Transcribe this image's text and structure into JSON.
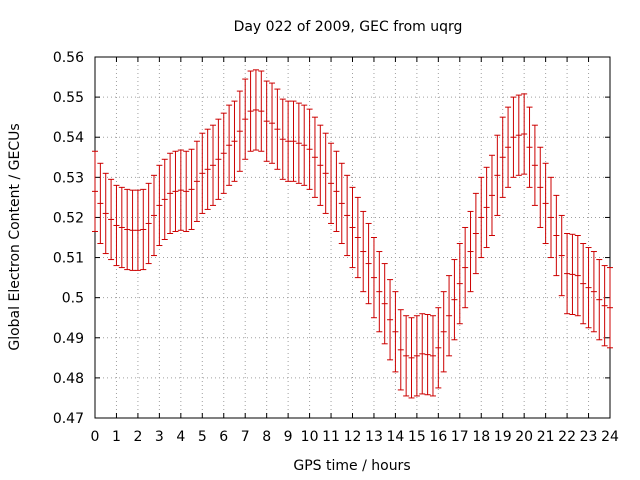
{
  "chart_data": {
    "type": "line",
    "title": "Day 022 of 2009, GEC from uqrg",
    "xlabel": "GPS time / hours",
    "ylabel": "Global Electron Content / GECUs",
    "xlim": [
      0,
      24
    ],
    "ylim": [
      0.47,
      0.56
    ],
    "grid": true,
    "xticks": [
      "0",
      "1",
      "2",
      "3",
      "4",
      "5",
      "6",
      "7",
      "8",
      "9",
      "10",
      "11",
      "12",
      "13",
      "14",
      "15",
      "16",
      "17",
      "18",
      "19",
      "20",
      "21",
      "22",
      "23",
      "24"
    ],
    "yticks": [
      "0.47",
      "0.48",
      "0.49",
      "0.5",
      "0.51",
      "0.52",
      "0.53",
      "0.54",
      "0.55",
      "0.56"
    ],
    "series": [
      {
        "name": "GEC",
        "color": "#cc0000",
        "error": 0.01,
        "x": [
          0,
          0.25,
          0.5,
          0.75,
          1,
          1.25,
          1.5,
          1.75,
          2,
          2.25,
          2.5,
          2.75,
          3,
          3.25,
          3.5,
          3.75,
          4,
          4.25,
          4.5,
          4.75,
          5,
          5.25,
          5.5,
          5.75,
          6,
          6.25,
          6.5,
          6.75,
          7,
          7.25,
          7.5,
          7.75,
          8,
          8.25,
          8.5,
          8.75,
          9,
          9.25,
          9.5,
          9.75,
          10,
          10.25,
          10.5,
          10.75,
          11,
          11.25,
          11.5,
          11.75,
          12,
          12.25,
          12.5,
          12.75,
          13,
          13.25,
          13.5,
          13.75,
          14,
          14.25,
          14.5,
          14.75,
          15,
          15.25,
          15.5,
          15.75,
          16,
          16.25,
          16.5,
          16.75,
          17,
          17.25,
          17.5,
          17.75,
          18,
          18.25,
          18.5,
          18.75,
          19,
          19.25,
          19.5,
          19.75,
          20,
          20.25,
          20.5,
          20.75,
          21,
          21.25,
          21.5,
          21.75,
          22,
          22.25,
          22.5,
          22.75,
          23,
          23.25,
          23.5,
          23.75,
          24
        ],
        "values": [
          0.5265,
          0.5235,
          0.521,
          0.5195,
          0.518,
          0.5175,
          0.517,
          0.5168,
          0.5168,
          0.517,
          0.5185,
          0.5205,
          0.523,
          0.5245,
          0.526,
          0.5265,
          0.5268,
          0.5265,
          0.527,
          0.529,
          0.531,
          0.532,
          0.533,
          0.5345,
          0.536,
          0.538,
          0.539,
          0.5415,
          0.5445,
          0.5465,
          0.5468,
          0.5465,
          0.544,
          0.5435,
          0.542,
          0.5395,
          0.539,
          0.539,
          0.5385,
          0.538,
          0.537,
          0.535,
          0.533,
          0.531,
          0.5285,
          0.5265,
          0.5235,
          0.5205,
          0.5175,
          0.515,
          0.5115,
          0.5085,
          0.505,
          0.5015,
          0.4985,
          0.4945,
          0.4915,
          0.487,
          0.4855,
          0.485,
          0.4855,
          0.486,
          0.4858,
          0.4855,
          0.4875,
          0.4915,
          0.4955,
          0.4995,
          0.5035,
          0.5075,
          0.5115,
          0.516,
          0.52,
          0.5225,
          0.5255,
          0.5305,
          0.535,
          0.5375,
          0.54,
          0.5405,
          0.5408,
          0.5375,
          0.533,
          0.5275,
          0.5235,
          0.52,
          0.5155,
          0.5105,
          0.506,
          0.5058,
          0.5055,
          0.5035,
          0.5025,
          0.5015,
          0.4995,
          0.498,
          0.4975
        ]
      }
    ]
  }
}
